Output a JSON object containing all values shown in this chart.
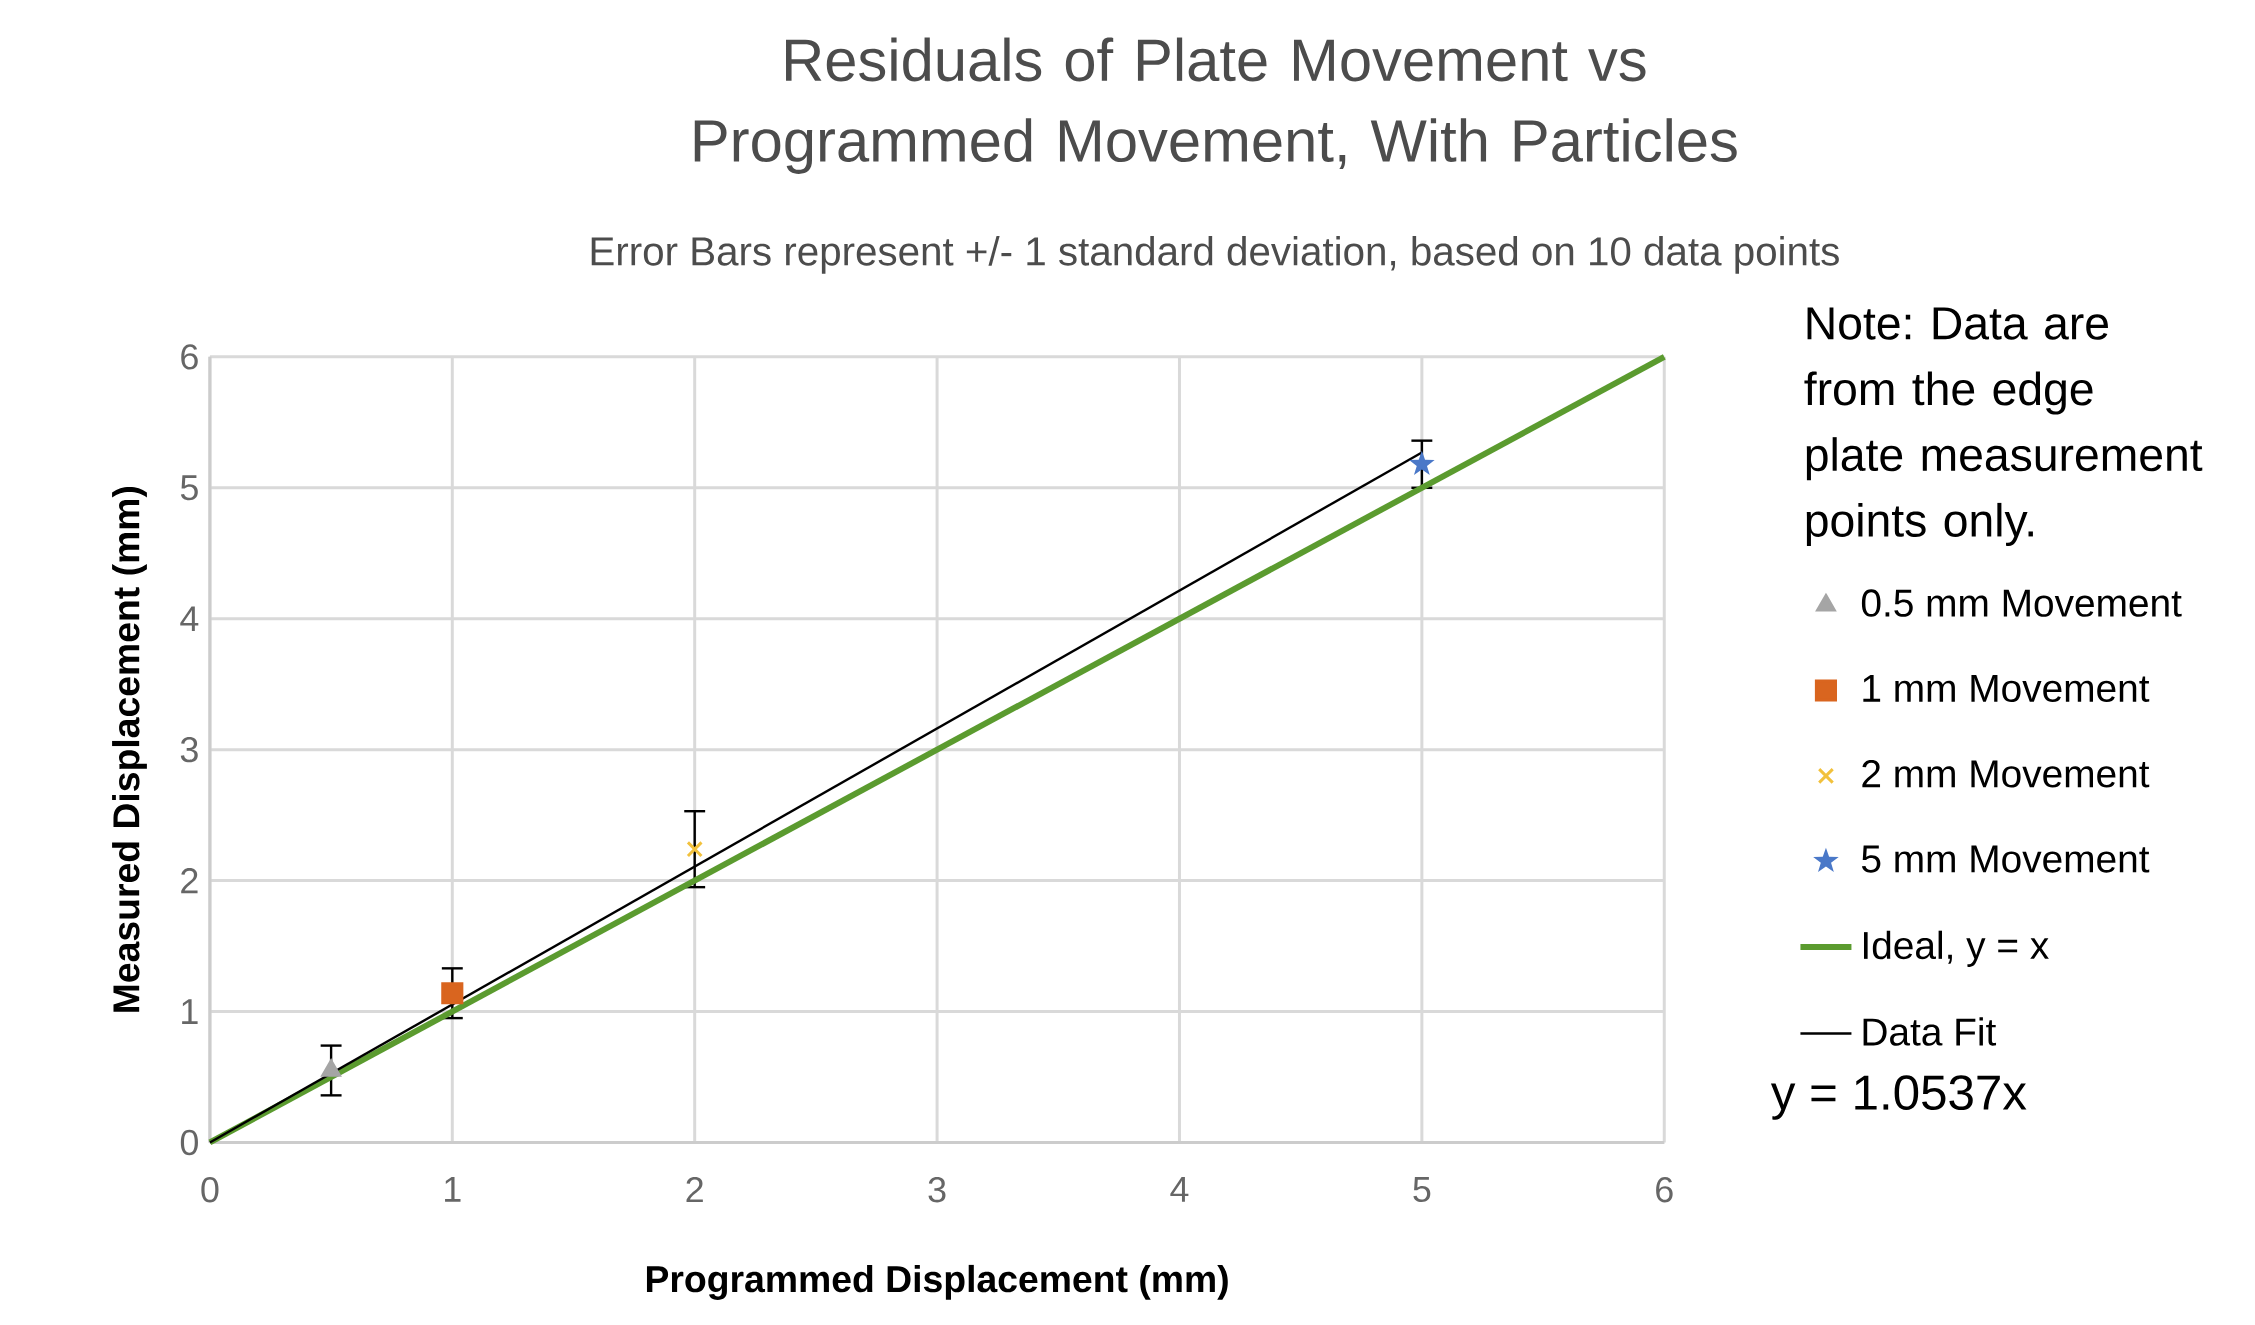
{
  "chart_data": {
    "type": "scatter",
    "title": "Residuals of Plate Movement vs Programmed Movement, With Particles",
    "subtitle": "Error Bars represent +/- 1 standard deviation, based on 10 data points",
    "xlabel": "Programmed Displacement (mm)",
    "ylabel": "Measured Displacement (mm)",
    "xlim": [
      0,
      6
    ],
    "ylim": [
      0,
      6
    ],
    "xticks": [
      0,
      1,
      2,
      3,
      4,
      5,
      6
    ],
    "yticks": [
      0,
      1,
      2,
      3,
      4,
      5,
      6
    ],
    "grid": true,
    "legend": "right",
    "annotations": [
      "Note: Data are from the edge plate measurement points only.",
      "y = 1.0537x"
    ],
    "series": [
      {
        "name": "0.5 mm Movement",
        "color": "#a5a5a5",
        "marker": "triangle",
        "x": [
          0.5
        ],
        "values": [
          0.55
        ],
        "errors": [
          0.19
        ]
      },
      {
        "name": "1 mm Movement",
        "color": "#d9651f",
        "marker": "square",
        "x": [
          1
        ],
        "values": [
          1.14
        ],
        "errors": [
          0.19
        ]
      },
      {
        "name": "2 mm Movement",
        "color": "#f2c13c",
        "marker": "cross",
        "x": [
          2
        ],
        "values": [
          2.24
        ],
        "errors": [
          0.29
        ]
      },
      {
        "name": "5 mm Movement",
        "color": "#4a78c8",
        "marker": "star",
        "x": [
          5
        ],
        "values": [
          5.18
        ],
        "errors": [
          0.18
        ]
      },
      {
        "name": "Ideal, y = x",
        "type": "line",
        "color": "#5b9b2f",
        "marker": "none",
        "x": [
          0,
          6
        ],
        "values": [
          0,
          6
        ]
      },
      {
        "name": "Data Fit",
        "type": "line",
        "color": "#000000",
        "marker": "none",
        "x": [
          0,
          5
        ],
        "values": [
          0,
          5.27
        ]
      }
    ]
  }
}
